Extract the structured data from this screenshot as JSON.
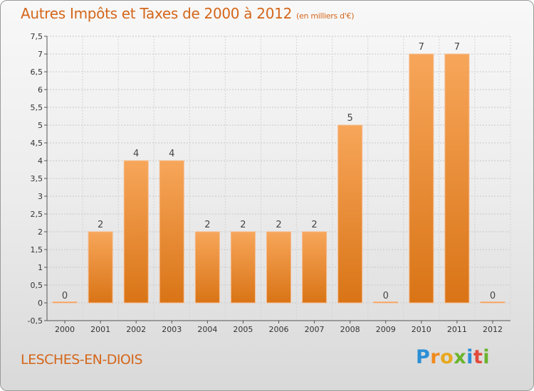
{
  "title": "Autres Impôts et Taxes de 2000 à 2012",
  "unit": "(en milliers d'€)",
  "commune": "LESCHES-EN-DIOIS",
  "logo": {
    "letters": [
      "P",
      "r",
      "o",
      "x",
      "i",
      "t",
      "i"
    ],
    "colors": [
      "#2c8fd6",
      "#f08a1c",
      "#e8a81f",
      "#6ab42d",
      "#2c8fd6",
      "#e24a3b",
      "#6ab42d"
    ]
  },
  "colors": {
    "accent": "#d4661a",
    "bar_top": "#f7a65a",
    "bar_bottom": "#d97416"
  },
  "chart_data": {
    "type": "bar",
    "categories": [
      "2000",
      "2001",
      "2002",
      "2003",
      "2004",
      "2005",
      "2006",
      "2007",
      "2008",
      "2009",
      "2010",
      "2011",
      "2012"
    ],
    "values": [
      0,
      2,
      4,
      4,
      2,
      2,
      2,
      2,
      5,
      0,
      7,
      7,
      0
    ],
    "data_labels": [
      "0",
      "2",
      "4",
      "4",
      "2",
      "2",
      "2",
      "2",
      "5",
      "0",
      "7",
      "7",
      "0"
    ],
    "yticks": [
      "-0,5",
      "0",
      "0,5",
      "1",
      "1,5",
      "2",
      "2,5",
      "3",
      "3,5",
      "4",
      "4,5",
      "5",
      "5,5",
      "6",
      "6,5",
      "7",
      "7,5"
    ],
    "ylim": [
      -0.5,
      7.5
    ],
    "grid": true
  }
}
